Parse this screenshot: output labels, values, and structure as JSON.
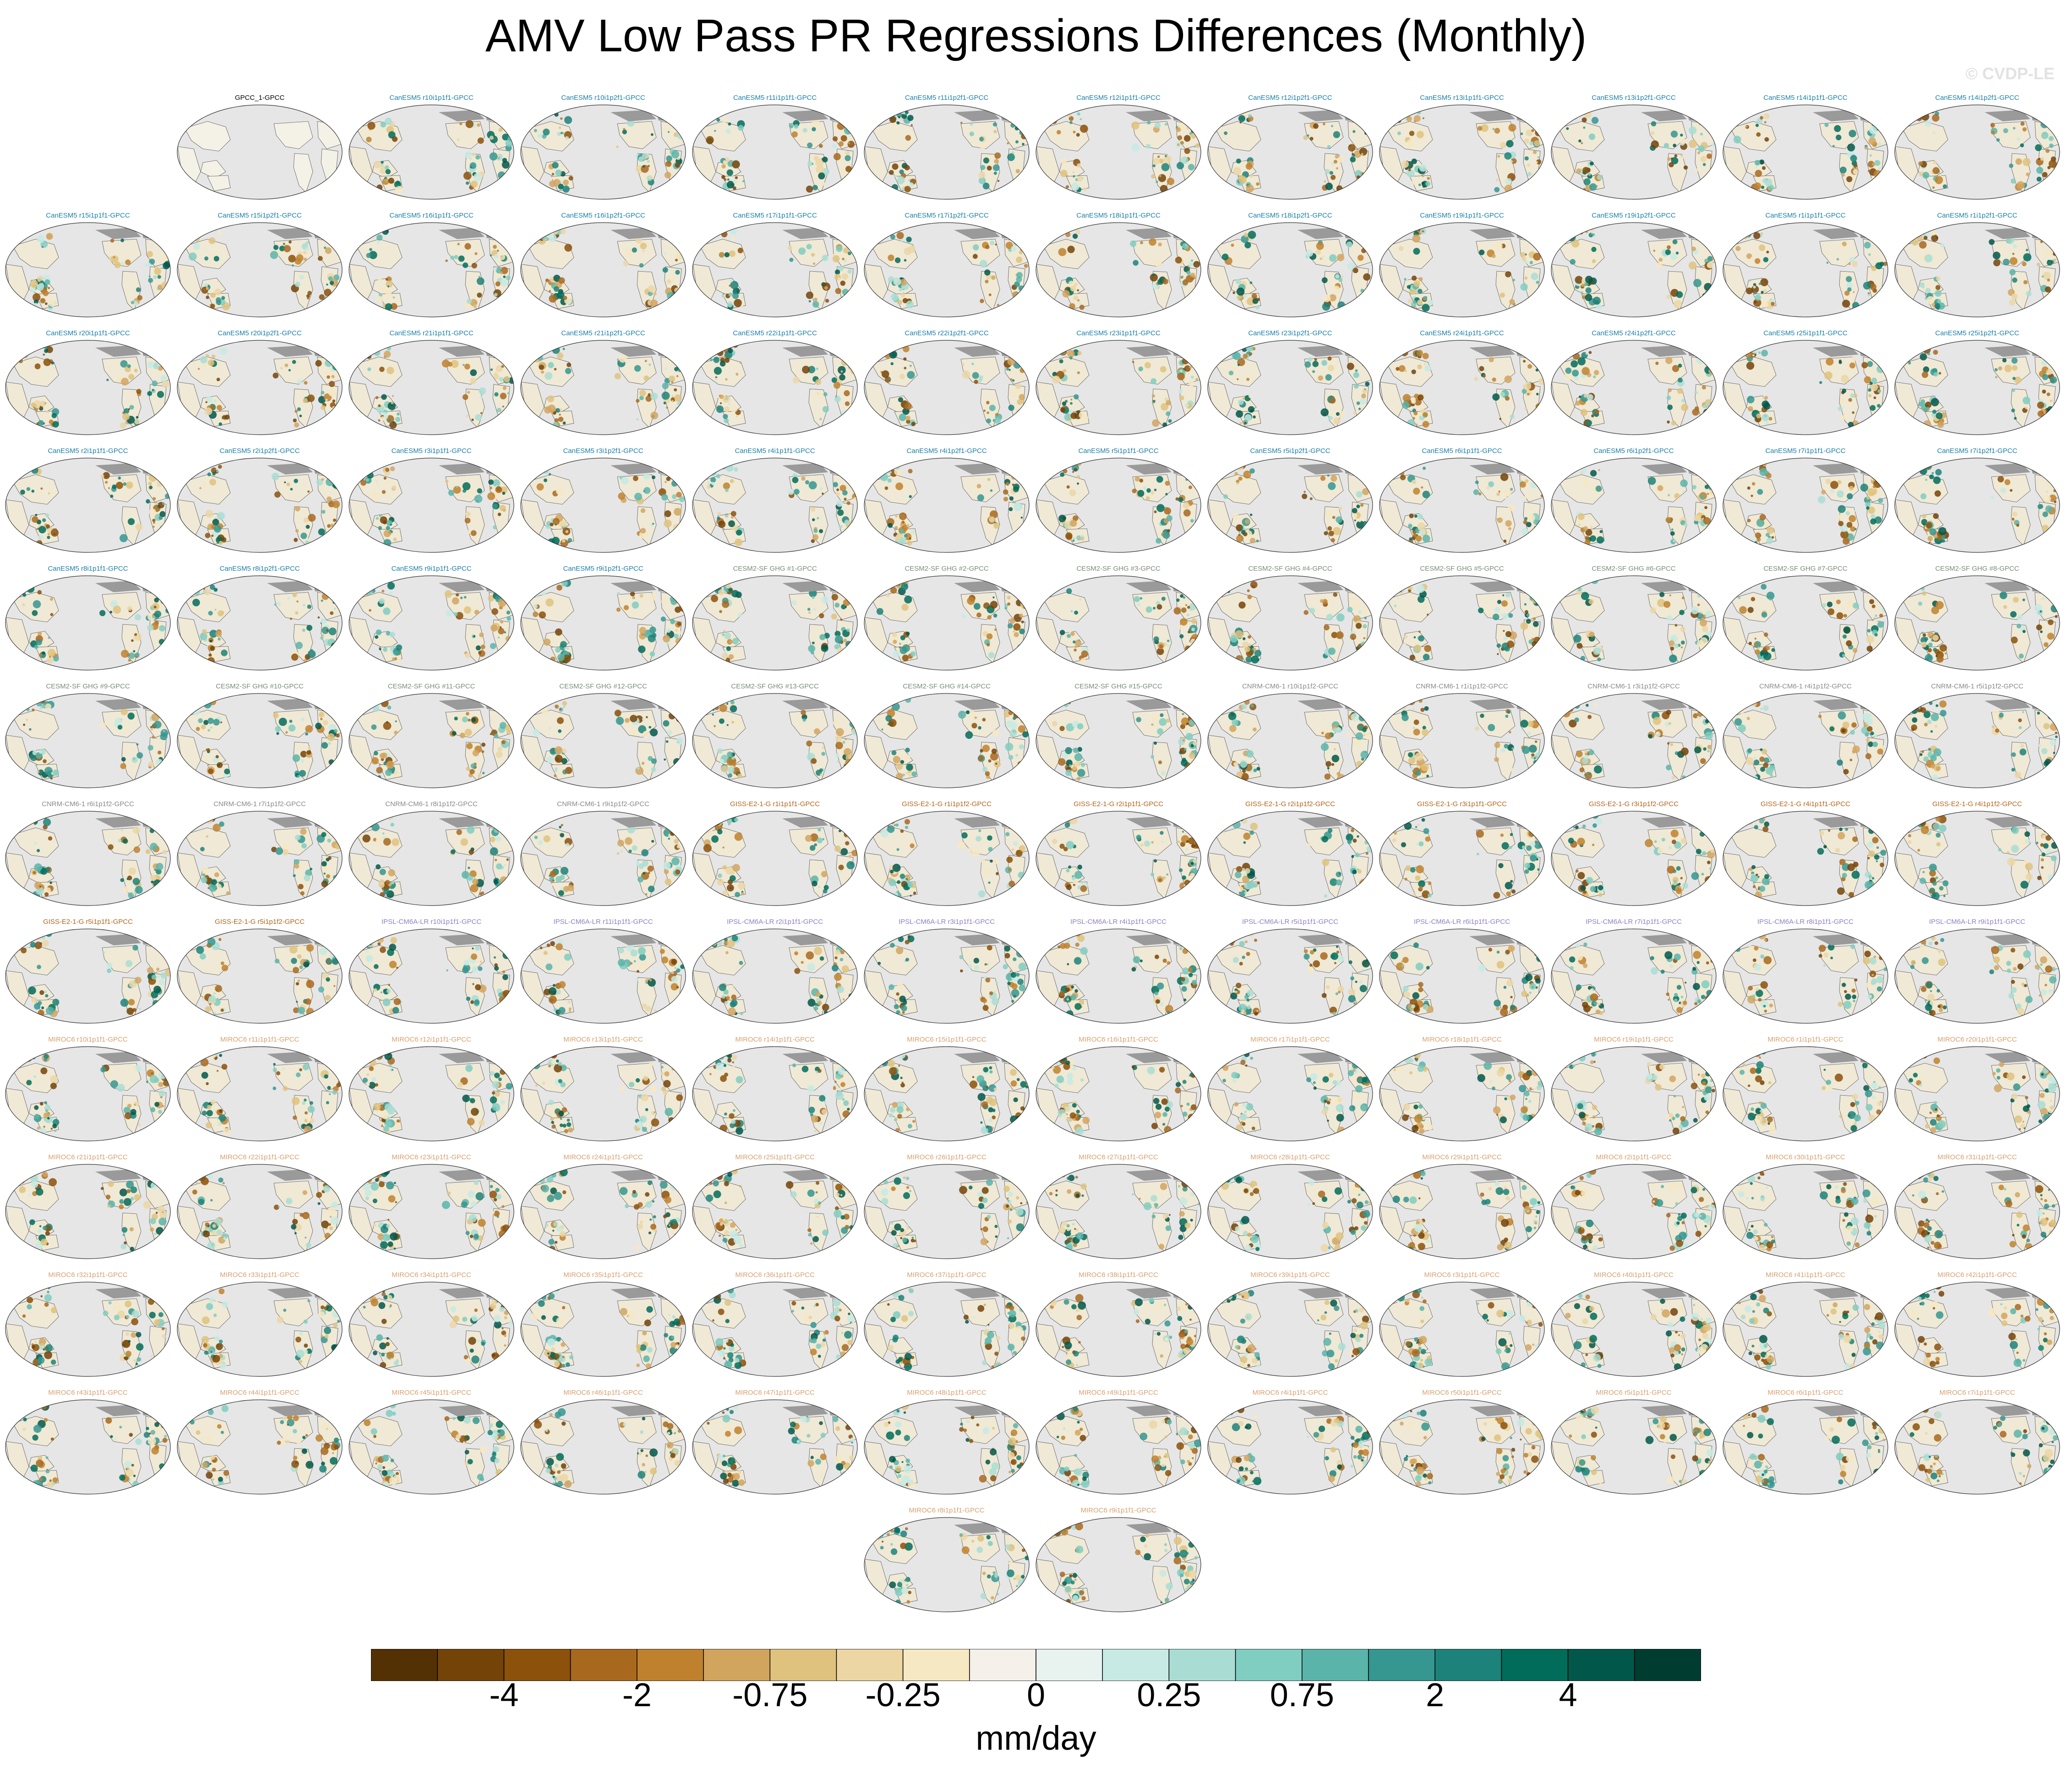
{
  "title": "AMV Low Pass PR Regressions Differences (Monthly)",
  "watermark": "© CVDP-LE",
  "colorbar": {
    "units": "mm/day",
    "colors": [
      "#543005",
      "#744308",
      "#8c510a",
      "#a8691e",
      "#bf812d",
      "#d2a55f",
      "#dfc27d",
      "#ebd6a4",
      "#f6e8c3",
      "#f5f1ea",
      "#e8f2ef",
      "#c7eae4",
      "#a9ddd4",
      "#80cdc1",
      "#5ab4a9",
      "#35978f",
      "#1d8279",
      "#016c59",
      "#01574a",
      "#003c30"
    ],
    "tick_labels": [
      "-4",
      "-2",
      "-0.75",
      "-0.25",
      "0",
      "0.25",
      "0.75",
      "2",
      "4"
    ]
  },
  "panels": [
    {
      "label": "GPCC_1-GPCC",
      "color": "#000000"
    },
    {
      "label": "CanESM5 r10i1p1f1-GPCC",
      "color": "#1a7fa8"
    },
    {
      "label": "CanESM5 r10i1p2f1-GPCC",
      "color": "#1a7fa8"
    },
    {
      "label": "CanESM5 r11i1p1f1-GPCC",
      "color": "#1a7fa8"
    },
    {
      "label": "CanESM5 r11i1p2f1-GPCC",
      "color": "#1a7fa8"
    },
    {
      "label": "CanESM5 r12i1p1f1-GPCC",
      "color": "#1a7fa8"
    },
    {
      "label": "CanESM5 r12i1p2f1-GPCC",
      "color": "#1a7fa8"
    },
    {
      "label": "CanESM5 r13i1p1f1-GPCC",
      "color": "#1a7fa8"
    },
    {
      "label": "CanESM5 r13i1p2f1-GPCC",
      "color": "#1a7fa8"
    },
    {
      "label": "CanESM5 r14i1p1f1-GPCC",
      "color": "#1a7fa8"
    },
    {
      "label": "CanESM5 r14i1p2f1-GPCC",
      "color": "#1a7fa8"
    },
    {
      "label": "CanESM5 r15i1p1f1-GPCC",
      "color": "#1a7fa8"
    },
    {
      "label": "CanESM5 r15i1p2f1-GPCC",
      "color": "#1a7fa8"
    },
    {
      "label": "CanESM5 r16i1p1f1-GPCC",
      "color": "#1a7fa8"
    },
    {
      "label": "CanESM5 r16i1p2f1-GPCC",
      "color": "#1a7fa8"
    },
    {
      "label": "CanESM5 r17i1p1f1-GPCC",
      "color": "#1a7fa8"
    },
    {
      "label": "CanESM5 r17i1p2f1-GPCC",
      "color": "#1a7fa8"
    },
    {
      "label": "CanESM5 r18i1p1f1-GPCC",
      "color": "#1a7fa8"
    },
    {
      "label": "CanESM5 r18i1p2f1-GPCC",
      "color": "#1a7fa8"
    },
    {
      "label": "CanESM5 r19i1p1f1-GPCC",
      "color": "#1a7fa8"
    },
    {
      "label": "CanESM5 r19i1p2f1-GPCC",
      "color": "#1a7fa8"
    },
    {
      "label": "CanESM5 r1i1p1f1-GPCC",
      "color": "#1a7fa8"
    },
    {
      "label": "CanESM5 r1i1p2f1-GPCC",
      "color": "#1a7fa8"
    },
    {
      "label": "CanESM5 r20i1p1f1-GPCC",
      "color": "#1a7fa8"
    },
    {
      "label": "CanESM5 r20i1p2f1-GPCC",
      "color": "#1a7fa8"
    },
    {
      "label": "CanESM5 r21i1p1f1-GPCC",
      "color": "#1a7fa8"
    },
    {
      "label": "CanESM5 r21i1p2f1-GPCC",
      "color": "#1a7fa8"
    },
    {
      "label": "CanESM5 r22i1p1f1-GPCC",
      "color": "#1a7fa8"
    },
    {
      "label": "CanESM5 r22i1p2f1-GPCC",
      "color": "#1a7fa8"
    },
    {
      "label": "CanESM5 r23i1p1f1-GPCC",
      "color": "#1a7fa8"
    },
    {
      "label": "CanESM5 r23i1p2f1-GPCC",
      "color": "#1a7fa8"
    },
    {
      "label": "CanESM5 r24i1p1f1-GPCC",
      "color": "#1a7fa8"
    },
    {
      "label": "CanESM5 r24i1p2f1-GPCC",
      "color": "#1a7fa8"
    },
    {
      "label": "CanESM5 r25i1p1f1-GPCC",
      "color": "#1a7fa8"
    },
    {
      "label": "CanESM5 r25i1p2f1-GPCC",
      "color": "#1a7fa8"
    },
    {
      "label": "CanESM5 r2i1p1f1-GPCC",
      "color": "#1a7fa8"
    },
    {
      "label": "CanESM5 r2i1p2f1-GPCC",
      "color": "#1a7fa8"
    },
    {
      "label": "CanESM5 r3i1p1f1-GPCC",
      "color": "#1a7fa8"
    },
    {
      "label": "CanESM5 r3i1p2f1-GPCC",
      "color": "#1a7fa8"
    },
    {
      "label": "CanESM5 r4i1p1f1-GPCC",
      "color": "#1a7fa8"
    },
    {
      "label": "CanESM5 r4i1p2f1-GPCC",
      "color": "#1a7fa8"
    },
    {
      "label": "CanESM5 r5i1p1f1-GPCC",
      "color": "#1a7fa8"
    },
    {
      "label": "CanESM5 r5i1p2f1-GPCC",
      "color": "#1a7fa8"
    },
    {
      "label": "CanESM5 r6i1p1f1-GPCC",
      "color": "#1a7fa8"
    },
    {
      "label": "CanESM5 r6i1p2f1-GPCC",
      "color": "#1a7fa8"
    },
    {
      "label": "CanESM5 r7i1p1f1-GPCC",
      "color": "#1a7fa8"
    },
    {
      "label": "CanESM5 r7i1p2f1-GPCC",
      "color": "#1a7fa8"
    },
    {
      "label": "CanESM5 r8i1p1f1-GPCC",
      "color": "#1a7fa8"
    },
    {
      "label": "CanESM5 r8i1p2f1-GPCC",
      "color": "#1a7fa8"
    },
    {
      "label": "CanESM5 r9i1p1f1-GPCC",
      "color": "#1a7fa8"
    },
    {
      "label": "CanESM5 r9i1p2f1-GPCC",
      "color": "#1a7fa8"
    },
    {
      "label": "CESM2-SF GHG #1-GPCC",
      "color": "#7a8c7a"
    },
    {
      "label": "CESM2-SF GHG #2-GPCC",
      "color": "#7a8c7a"
    },
    {
      "label": "CESM2-SF GHG #3-GPCC",
      "color": "#7a8c7a"
    },
    {
      "label": "CESM2-SF GHG #4-GPCC",
      "color": "#7a8c7a"
    },
    {
      "label": "CESM2-SF GHG #5-GPCC",
      "color": "#7a8c7a"
    },
    {
      "label": "CESM2-SF GHG #6-GPCC",
      "color": "#7a8c7a"
    },
    {
      "label": "CESM2-SF GHG #7-GPCC",
      "color": "#7a8c7a"
    },
    {
      "label": "CESM2-SF GHG #8-GPCC",
      "color": "#7a8c7a"
    },
    {
      "label": "CESM2-SF GHG #9-GPCC",
      "color": "#7a8c7a"
    },
    {
      "label": "CESM2-SF GHG #10-GPCC",
      "color": "#7a8c7a"
    },
    {
      "label": "CESM2-SF GHG #11-GPCC",
      "color": "#7a8c7a"
    },
    {
      "label": "CESM2-SF GHG #12-GPCC",
      "color": "#7a8c7a"
    },
    {
      "label": "CESM2-SF GHG #13-GPCC",
      "color": "#7a8c7a"
    },
    {
      "label": "CESM2-SF GHG #14-GPCC",
      "color": "#7a8c7a"
    },
    {
      "label": "CESM2-SF GHG #15-GPCC",
      "color": "#7a8c7a"
    },
    {
      "label": "CNRM-CM6-1 r10i1p1f2-GPCC",
      "color": "#8a8a8a"
    },
    {
      "label": "CNRM-CM6-1 r1i1p1f2-GPCC",
      "color": "#8a8a8a"
    },
    {
      "label": "CNRM-CM6-1 r3i1p1f2-GPCC",
      "color": "#8a8a8a"
    },
    {
      "label": "CNRM-CM6-1 r4i1p1f2-GPCC",
      "color": "#8a8a8a"
    },
    {
      "label": "CNRM-CM6-1 r5i1p1f2-GPCC",
      "color": "#8a8a8a"
    },
    {
      "label": "CNRM-CM6-1 r6i1p1f2-GPCC",
      "color": "#8a8a8a"
    },
    {
      "label": "CNRM-CM6-1 r7i1p1f2-GPCC",
      "color": "#8a8a8a"
    },
    {
      "label": "CNRM-CM6-1 r8i1p1f2-GPCC",
      "color": "#8a8a8a"
    },
    {
      "label": "CNRM-CM6-1 r9i1p1f2-GPCC",
      "color": "#8a8a8a"
    },
    {
      "label": "GISS-E2-1-G r1i1p1f1-GPCC",
      "color": "#b5651d"
    },
    {
      "label": "GISS-E2-1-G r1i1p1f2-GPCC",
      "color": "#b5651d"
    },
    {
      "label": "GISS-E2-1-G r2i1p1f1-GPCC",
      "color": "#b5651d"
    },
    {
      "label": "GISS-E2-1-G r2i1p1f2-GPCC",
      "color": "#b5651d"
    },
    {
      "label": "GISS-E2-1-G r3i1p1f1-GPCC",
      "color": "#b5651d"
    },
    {
      "label": "GISS-E2-1-G r3i1p1f2-GPCC",
      "color": "#b5651d"
    },
    {
      "label": "GISS-E2-1-G r4i1p1f1-GPCC",
      "color": "#b5651d"
    },
    {
      "label": "GISS-E2-1-G r4i1p1f2-GPCC",
      "color": "#b5651d"
    },
    {
      "label": "GISS-E2-1-G r5i1p1f1-GPCC",
      "color": "#b5651d"
    },
    {
      "label": "GISS-E2-1-G r5i1p1f2-GPCC",
      "color": "#b5651d"
    },
    {
      "label": "IPSL-CM6A-LR r10i1p1f1-GPCC",
      "color": "#8f7fc8"
    },
    {
      "label": "IPSL-CM6A-LR r11i1p1f1-GPCC",
      "color": "#8f7fc8"
    },
    {
      "label": "IPSL-CM6A-LR r2i1p1f1-GPCC",
      "color": "#8f7fc8"
    },
    {
      "label": "IPSL-CM6A-LR r3i1p1f1-GPCC",
      "color": "#8f7fc8"
    },
    {
      "label": "IPSL-CM6A-LR r4i1p1f1-GPCC",
      "color": "#8f7fc8"
    },
    {
      "label": "IPSL-CM6A-LR r5i1p1f1-GPCC",
      "color": "#8f7fc8"
    },
    {
      "label": "IPSL-CM6A-LR r6i1p1f1-GPCC",
      "color": "#8f7fc8"
    },
    {
      "label": "IPSL-CM6A-LR r7i1p1f1-GPCC",
      "color": "#8f7fc8"
    },
    {
      "label": "IPSL-CM6A-LR r8i1p1f1-GPCC",
      "color": "#8f7fc8"
    },
    {
      "label": "IPSL-CM6A-LR r9i1p1f1-GPCC",
      "color": "#8f7fc8"
    },
    {
      "label": "MIROC6 r10i1p1f1-GPCC",
      "color": "#d8a070"
    },
    {
      "label": "MIROC6 r11i1p1f1-GPCC",
      "color": "#d8a070"
    },
    {
      "label": "MIROC6 r12i1p1f1-GPCC",
      "color": "#d8a070"
    },
    {
      "label": "MIROC6 r13i1p1f1-GPCC",
      "color": "#d8a070"
    },
    {
      "label": "MIROC6 r14i1p1f1-GPCC",
      "color": "#d8a070"
    },
    {
      "label": "MIROC6 r15i1p1f1-GPCC",
      "color": "#d8a070"
    },
    {
      "label": "MIROC6 r16i1p1f1-GPCC",
      "color": "#d8a070"
    },
    {
      "label": "MIROC6 r17i1p1f1-GPCC",
      "color": "#d8a070"
    },
    {
      "label": "MIROC6 r18i1p1f1-GPCC",
      "color": "#d8a070"
    },
    {
      "label": "MIROC6 r19i1p1f1-GPCC",
      "color": "#d8a070"
    },
    {
      "label": "MIROC6 r1i1p1f1-GPCC",
      "color": "#d8a070"
    },
    {
      "label": "MIROC6 r20i1p1f1-GPCC",
      "color": "#d8a070"
    },
    {
      "label": "MIROC6 r21i1p1f1-GPCC",
      "color": "#d8a070"
    },
    {
      "label": "MIROC6 r22i1p1f1-GPCC",
      "color": "#d8a070"
    },
    {
      "label": "MIROC6 r23i1p1f1-GPCC",
      "color": "#d8a070"
    },
    {
      "label": "MIROC6 r24i1p1f1-GPCC",
      "color": "#d8a070"
    },
    {
      "label": "MIROC6 r25i1p1f1-GPCC",
      "color": "#d8a070"
    },
    {
      "label": "MIROC6 r26i1p1f1-GPCC",
      "color": "#d8a070"
    },
    {
      "label": "MIROC6 r27i1p1f1-GPCC",
      "color": "#d8a070"
    },
    {
      "label": "MIROC6 r28i1p1f1-GPCC",
      "color": "#d8a070"
    },
    {
      "label": "MIROC6 r29i1p1f1-GPCC",
      "color": "#d8a070"
    },
    {
      "label": "MIROC6 r2i1p1f1-GPCC",
      "color": "#d8a070"
    },
    {
      "label": "MIROC6 r30i1p1f1-GPCC",
      "color": "#d8a070"
    },
    {
      "label": "MIROC6 r31i1p1f1-GPCC",
      "color": "#d8a070"
    },
    {
      "label": "MIROC6 r32i1p1f1-GPCC",
      "color": "#d8a070"
    },
    {
      "label": "MIROC6 r33i1p1f1-GPCC",
      "color": "#d8a070"
    },
    {
      "label": "MIROC6 r34i1p1f1-GPCC",
      "color": "#d8a070"
    },
    {
      "label": "MIROC6 r35i1p1f1-GPCC",
      "color": "#d8a070"
    },
    {
      "label": "MIROC6 r36i1p1f1-GPCC",
      "color": "#d8a070"
    },
    {
      "label": "MIROC6 r37i1p1f1-GPCC",
      "color": "#d8a070"
    },
    {
      "label": "MIROC6 r38i1p1f1-GPCC",
      "color": "#d8a070"
    },
    {
      "label": "MIROC6 r39i1p1f1-GPCC",
      "color": "#d8a070"
    },
    {
      "label": "MIROC6 r3i1p1f1-GPCC",
      "color": "#d8a070"
    },
    {
      "label": "MIROC6 r40i1p1f1-GPCC",
      "color": "#d8a070"
    },
    {
      "label": "MIROC6 r41i1p1f1-GPCC",
      "color": "#d8a070"
    },
    {
      "label": "MIROC6 r42i1p1f1-GPCC",
      "color": "#d8a070"
    },
    {
      "label": "MIROC6 r43i1p1f1-GPCC",
      "color": "#d8a070"
    },
    {
      "label": "MIROC6 r44i1p1f1-GPCC",
      "color": "#d8a070"
    },
    {
      "label": "MIROC6 r45i1p1f1-GPCC",
      "color": "#d8a070"
    },
    {
      "label": "MIROC6 r46i1p1f1-GPCC",
      "color": "#d8a070"
    },
    {
      "label": "MIROC6 r47i1p1f1-GPCC",
      "color": "#d8a070"
    },
    {
      "label": "MIROC6 r48i1p1f1-GPCC",
      "color": "#d8a070"
    },
    {
      "label": "MIROC6 r49i1p1f1-GPCC",
      "color": "#d8a070"
    },
    {
      "label": "MIROC6 r4i1p1f1-GPCC",
      "color": "#d8a070"
    },
    {
      "label": "MIROC6 r50i1p1f1-GPCC",
      "color": "#d8a070"
    },
    {
      "label": "MIROC6 r5i1p1f1-GPCC",
      "color": "#d8a070"
    },
    {
      "label": "MIROC6 r6i1p1f1-GPCC",
      "color": "#d8a070"
    },
    {
      "label": "MIROC6 r7i1p1f1-GPCC",
      "color": "#d8a070"
    },
    {
      "label": "MIROC6 r8i1p1f1-GPCC",
      "color": "#d8a070"
    },
    {
      "label": "MIROC6 r9i1p1f1-GPCC",
      "color": "#d8a070"
    }
  ]
}
